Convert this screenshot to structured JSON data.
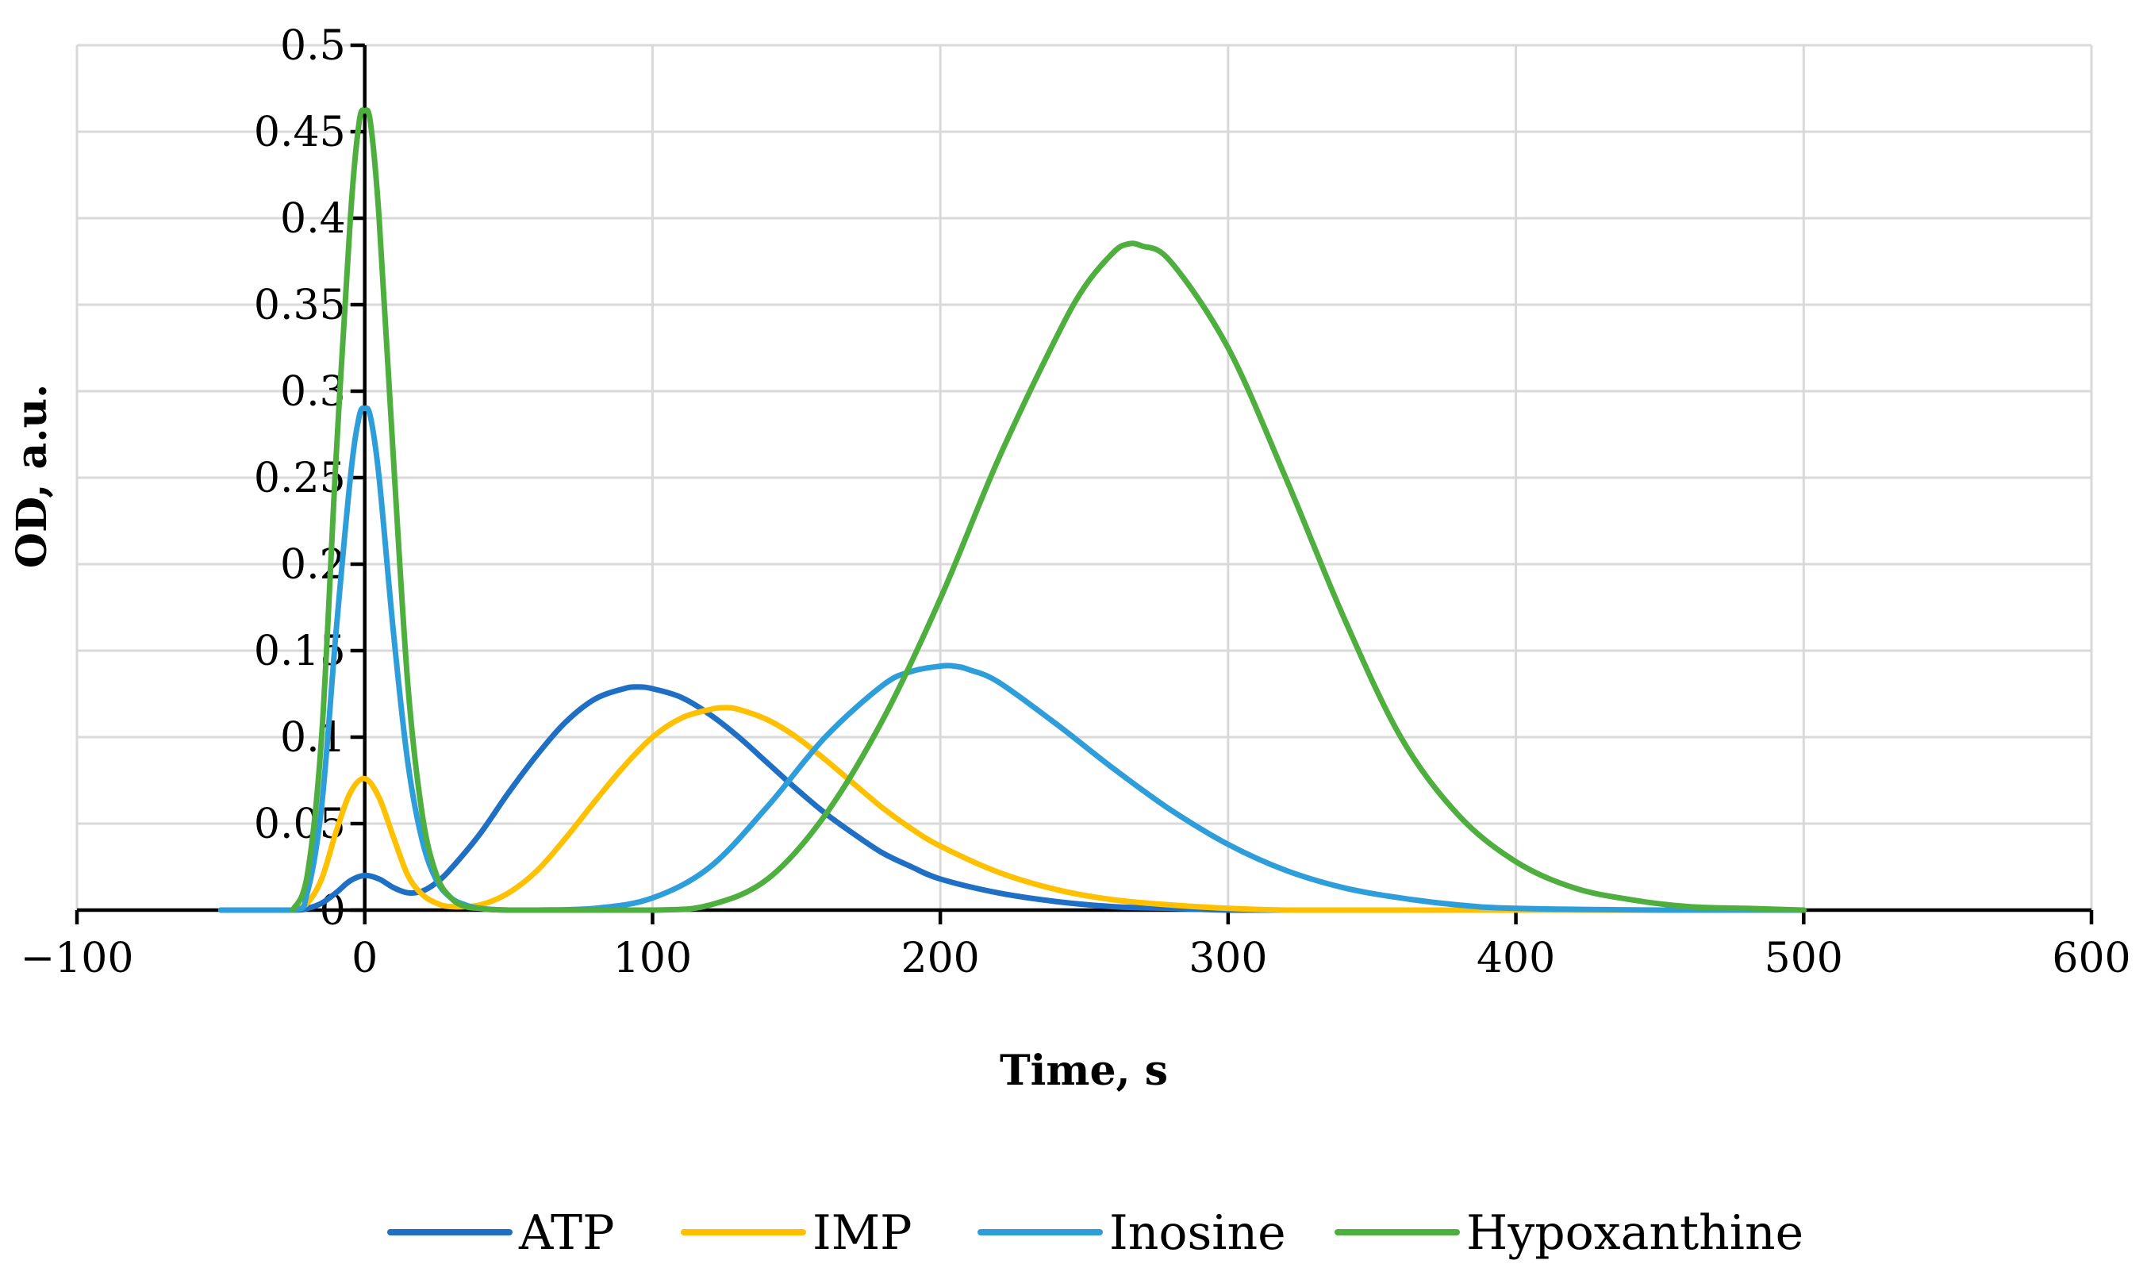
{
  "chart_data": {
    "type": "line",
    "title": "",
    "xlabel": "Time, s",
    "ylabel": "OD, a.u.",
    "xlim": [
      -100,
      600
    ],
    "ylim": [
      0,
      0.5
    ],
    "grid": true,
    "legend_position": "bottom",
    "x_ticks": [
      -100,
      0,
      100,
      200,
      300,
      400,
      500,
      600
    ],
    "x_tick_labels": [
      "−100",
      "0",
      "100",
      "200",
      "300",
      "400",
      "500",
      "600"
    ],
    "y_ticks": [
      0,
      0.05,
      0.1,
      0.15,
      0.2,
      0.25,
      0.3,
      0.35,
      0.4,
      0.45,
      0.5
    ],
    "y_tick_labels": [
      "0",
      "0.05",
      "0.1",
      "0.15",
      "0.2",
      "0.25",
      "0.3",
      "0.35",
      "0.4",
      "0.45",
      "0.5"
    ],
    "series": [
      {
        "name": "ATP",
        "color": "#1f6fc5",
        "x": [
          -50,
          -25,
          -20,
          -15,
          -10,
          -5,
          0,
          5,
          10,
          15,
          20,
          25,
          30,
          40,
          50,
          60,
          70,
          80,
          90,
          95,
          100,
          110,
          120,
          130,
          140,
          150,
          160,
          170,
          180,
          190,
          200,
          220,
          240,
          260,
          280,
          300,
          320,
          350,
          400,
          450,
          500
        ],
        "values": [
          0,
          0,
          0.001,
          0.004,
          0.01,
          0.017,
          0.02,
          0.018,
          0.013,
          0.01,
          0.011,
          0.016,
          0.024,
          0.044,
          0.068,
          0.09,
          0.109,
          0.122,
          0.128,
          0.129,
          0.128,
          0.123,
          0.113,
          0.1,
          0.085,
          0.07,
          0.056,
          0.044,
          0.033,
          0.025,
          0.018,
          0.01,
          0.005,
          0.002,
          0.001,
          0,
          0,
          0,
          0,
          0,
          0
        ]
      },
      {
        "name": "IMP",
        "color": "#ffc000",
        "x": [
          -25,
          -20,
          -15,
          -10,
          -5,
          0,
          5,
          10,
          15,
          20,
          25,
          30,
          40,
          50,
          60,
          70,
          80,
          90,
          100,
          110,
          120,
          125,
          130,
          140,
          150,
          160,
          170,
          180,
          190,
          200,
          220,
          240,
          260,
          280,
          300,
          320,
          350,
          400,
          500
        ],
        "values": [
          0,
          0.004,
          0.018,
          0.045,
          0.068,
          0.076,
          0.065,
          0.042,
          0.02,
          0.009,
          0.004,
          0.002,
          0.003,
          0.01,
          0.023,
          0.042,
          0.063,
          0.083,
          0.1,
          0.111,
          0.116,
          0.117,
          0.116,
          0.11,
          0.1,
          0.087,
          0.073,
          0.059,
          0.047,
          0.037,
          0.022,
          0.012,
          0.006,
          0.003,
          0.001,
          0,
          0,
          0,
          0
        ]
      },
      {
        "name": "Inosine",
        "color": "#2e9edb",
        "x": [
          -50,
          -25,
          -20,
          -15,
          -10,
          -5,
          -2,
          0,
          2,
          5,
          10,
          15,
          20,
          25,
          30,
          35,
          40,
          50,
          60,
          80,
          100,
          120,
          140,
          160,
          180,
          190,
          200,
          205,
          210,
          220,
          240,
          260,
          280,
          300,
          320,
          340,
          360,
          380,
          400,
          450,
          500
        ],
        "values": [
          0,
          0,
          0.01,
          0.06,
          0.16,
          0.25,
          0.285,
          0.29,
          0.285,
          0.25,
          0.16,
          0.085,
          0.04,
          0.017,
          0.007,
          0.003,
          0.001,
          0,
          0,
          0.001,
          0.007,
          0.025,
          0.06,
          0.1,
          0.13,
          0.138,
          0.141,
          0.141,
          0.139,
          0.132,
          0.108,
          0.082,
          0.058,
          0.038,
          0.023,
          0.013,
          0.007,
          0.003,
          0.001,
          0,
          0
        ]
      },
      {
        "name": "Hypoxanthine",
        "color": "#4eaf3e",
        "x": [
          -25,
          -20,
          -15,
          -10,
          -5,
          -2,
          0,
          2,
          5,
          10,
          15,
          20,
          25,
          30,
          35,
          40,
          50,
          100,
          120,
          140,
          160,
          180,
          200,
          220,
          240,
          250,
          260,
          265,
          270,
          280,
          300,
          320,
          340,
          360,
          380,
          400,
          420,
          440,
          460,
          480,
          500
        ],
        "values": [
          0,
          0.02,
          0.1,
          0.26,
          0.4,
          0.455,
          0.462,
          0.455,
          0.4,
          0.26,
          0.13,
          0.055,
          0.02,
          0.007,
          0.002,
          0.001,
          0,
          0,
          0.003,
          0.018,
          0.055,
          0.11,
          0.18,
          0.26,
          0.33,
          0.36,
          0.38,
          0.385,
          0.384,
          0.375,
          0.325,
          0.25,
          0.17,
          0.1,
          0.055,
          0.028,
          0.013,
          0.006,
          0.002,
          0.001,
          0
        ]
      }
    ]
  }
}
